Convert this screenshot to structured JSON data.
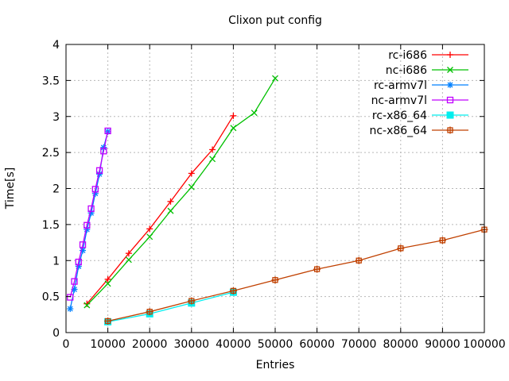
{
  "chart_data": {
    "type": "line",
    "title": "Clixon put config",
    "xlabel": "Entries",
    "ylabel": "Time[s]",
    "xlim": [
      0,
      100000
    ],
    "ylim": [
      0,
      4
    ],
    "grid": true,
    "legend_position": "top-right-inside",
    "x_ticks": {
      "values": [
        0,
        10000,
        20000,
        30000,
        40000,
        50000,
        60000,
        70000,
        80000,
        90000,
        100000
      ],
      "labels": [
        "0",
        "10000",
        "20000",
        "30000",
        "40000",
        "50000",
        "60000",
        "70000",
        "80000",
        "90000",
        "100000"
      ]
    },
    "y_ticks": {
      "values": [
        0,
        0.5,
        1,
        1.5,
        2,
        2.5,
        3,
        3.5,
        4
      ],
      "labels": [
        "0",
        "0.5",
        "1",
        "1.5",
        "2",
        "2.5",
        "3",
        "3.5",
        "4"
      ]
    },
    "grid_color": "#b8b8b8",
    "axis_color": "#000000",
    "series": [
      {
        "name": "rc-i686",
        "color": "#ff0000",
        "marker": "plus",
        "x": [
          5000,
          10000,
          15000,
          20000,
          25000,
          30000,
          35000,
          40000
        ],
        "y": [
          0.4,
          0.74,
          1.1,
          1.44,
          1.82,
          2.21,
          2.54,
          3.01
        ]
      },
      {
        "name": "nc-i686",
        "color": "#00c000",
        "marker": "cross",
        "x": [
          5000,
          10000,
          15000,
          20000,
          25000,
          30000,
          35000,
          40000,
          45000,
          50000
        ],
        "y": [
          0.38,
          0.68,
          1.01,
          1.33,
          1.69,
          2.02,
          2.41,
          2.84,
          3.05,
          3.53
        ]
      },
      {
        "name": "rc-armv7l",
        "color": "#0080ff",
        "marker": "asterisk",
        "x": [
          1000,
          2000,
          3000,
          4000,
          5000,
          6000,
          7000,
          8000,
          9000,
          10000
        ],
        "y": [
          0.33,
          0.6,
          0.92,
          1.14,
          1.43,
          1.66,
          1.93,
          2.2,
          2.57,
          2.79
        ]
      },
      {
        "name": "nc-armv7l",
        "color": "#c000ff",
        "marker": "open-square",
        "x": [
          1000,
          2000,
          3000,
          4000,
          5000,
          6000,
          7000,
          8000,
          9000,
          10000
        ],
        "y": [
          0.49,
          0.71,
          0.98,
          1.22,
          1.49,
          1.72,
          1.99,
          2.25,
          2.52,
          2.8
        ]
      },
      {
        "name": "rc-x86_64",
        "color": "#00eeee",
        "marker": "filled-square",
        "x": [
          10000,
          20000,
          30000,
          40000
        ],
        "y": [
          0.15,
          0.26,
          0.41,
          0.56
        ]
      },
      {
        "name": "nc-x86_64",
        "color": "#c04000",
        "marker": "open-square-plus",
        "x": [
          10000,
          20000,
          30000,
          40000,
          50000,
          60000,
          70000,
          80000,
          90000,
          100000
        ],
        "y": [
          0.16,
          0.29,
          0.44,
          0.58,
          0.73,
          0.88,
          1.0,
          1.17,
          1.28,
          1.43
        ]
      }
    ]
  }
}
